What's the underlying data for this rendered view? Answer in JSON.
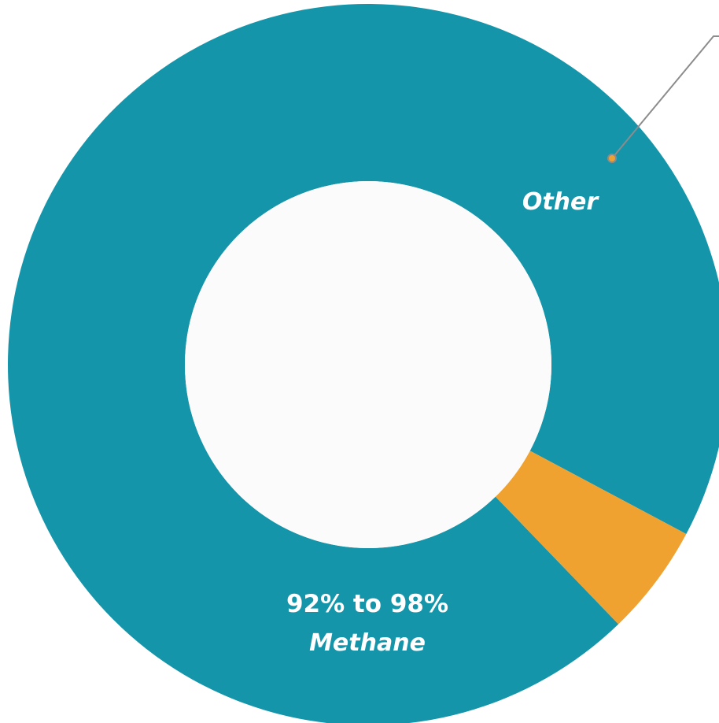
{
  "chart_data": {
    "type": "pie",
    "variant": "donut",
    "slices": [
      {
        "label": "Methane",
        "value_text": "92% to 98%",
        "value": 95,
        "color": "#1595aa"
      },
      {
        "label": "Other",
        "value_text": "",
        "value": 5,
        "color": "#f0a231"
      }
    ],
    "center_color": "#fbfbfb",
    "callout_color": "#8c8c8c",
    "legend": "none"
  }
}
